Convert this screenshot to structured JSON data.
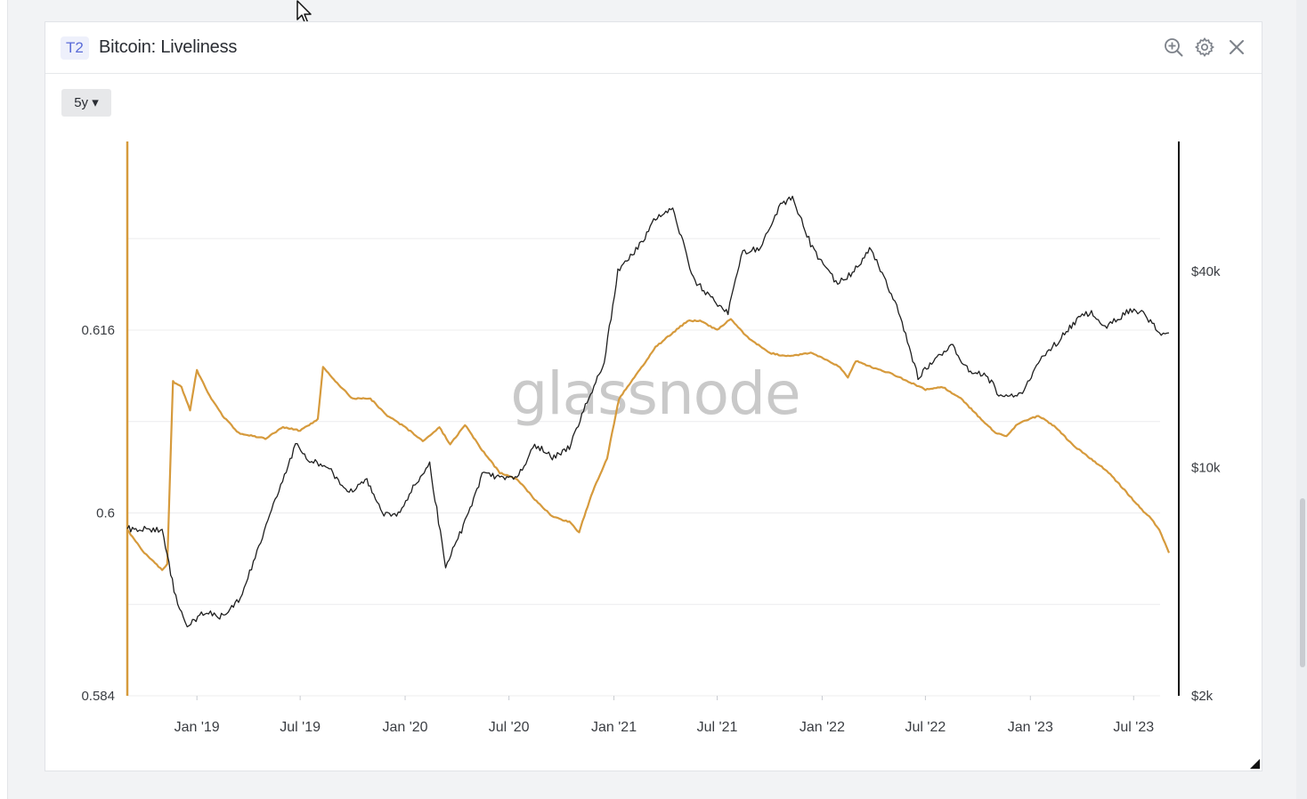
{
  "panel": {
    "badge": "T2",
    "title": "Bitcoin: Liveliness",
    "range_label": "5y ▾",
    "watermark": "glassnode"
  },
  "icons": {
    "zoom": "zoom-in-icon",
    "settings": "gear-icon",
    "close": "close-icon"
  },
  "colors": {
    "liveliness": "#d69a3c",
    "price": "#1f1f1f",
    "grid": "#ececee",
    "watermark": "#c9c9c9"
  },
  "chart_data": {
    "type": "line",
    "title": "Bitcoin: Liveliness",
    "x_range": [
      "2018-09-01",
      "2023-09-01"
    ],
    "x_ticks": [
      {
        "label": "Jan '19",
        "date": "2019-01-01"
      },
      {
        "label": "Jul '19",
        "date": "2019-07-01"
      },
      {
        "label": "Jan '20",
        "date": "2020-01-01"
      },
      {
        "label": "Jul '20",
        "date": "2020-07-01"
      },
      {
        "label": "Jan '21",
        "date": "2021-01-01"
      },
      {
        "label": "Jul '21",
        "date": "2021-07-01"
      },
      {
        "label": "Jan '22",
        "date": "2022-01-01"
      },
      {
        "label": "Jul '22",
        "date": "2022-07-01"
      },
      {
        "label": "Jan '23",
        "date": "2023-01-01"
      },
      {
        "label": "Jul '23",
        "date": "2023-07-01"
      }
    ],
    "y_left": {
      "ticks": [
        {
          "label": "0.584",
          "value": 0.584
        },
        {
          "label": "0.6",
          "value": 0.6
        },
        {
          "label": "0.616",
          "value": 0.616
        }
      ],
      "range": [
        0.584,
        0.6325
      ]
    },
    "y_right": {
      "scale": "log",
      "ticks": [
        {
          "label": "$2k",
          "value": 2000
        },
        {
          "label": "$10k",
          "value": 10000
        },
        {
          "label": "$40k",
          "value": 40000
        }
      ],
      "range": [
        2000,
        100000
      ]
    },
    "grid": true,
    "series": [
      {
        "axis": "left",
        "color": "#d69a3c",
        "points": [
          [
            "2018-09-01",
            0.5985
          ],
          [
            "2018-10-01",
            0.5965
          ],
          [
            "2018-11-01",
            0.595
          ],
          [
            "2018-11-10",
            0.5955
          ],
          [
            "2018-11-20",
            0.6115
          ],
          [
            "2018-12-05",
            0.611
          ],
          [
            "2018-12-20",
            0.609
          ],
          [
            "2019-01-01",
            0.6125
          ],
          [
            "2019-01-20",
            0.6105
          ],
          [
            "2019-02-15",
            0.6085
          ],
          [
            "2019-03-15",
            0.607
          ],
          [
            "2019-05-01",
            0.6065
          ],
          [
            "2019-06-01",
            0.6075
          ],
          [
            "2019-07-01",
            0.6072
          ],
          [
            "2019-08-01",
            0.6082
          ],
          [
            "2019-08-10",
            0.6128
          ],
          [
            "2019-09-01",
            0.6115
          ],
          [
            "2019-10-01",
            0.61
          ],
          [
            "2019-11-01",
            0.61
          ],
          [
            "2019-12-01",
            0.6085
          ],
          [
            "2020-01-01",
            0.6075
          ],
          [
            "2020-02-01",
            0.6063
          ],
          [
            "2020-03-01",
            0.6075
          ],
          [
            "2020-03-20",
            0.606
          ],
          [
            "2020-04-15",
            0.6077
          ],
          [
            "2020-05-15",
            0.6055
          ],
          [
            "2020-06-15",
            0.6035
          ],
          [
            "2020-07-15",
            0.603
          ],
          [
            "2020-08-15",
            0.6012
          ],
          [
            "2020-09-15",
            0.5997
          ],
          [
            "2020-10-15",
            0.5992
          ],
          [
            "2020-11-01",
            0.5983
          ],
          [
            "2020-11-10",
            0.5997
          ],
          [
            "2020-11-25",
            0.6019
          ],
          [
            "2020-12-20",
            0.6048
          ],
          [
            "2021-01-10",
            0.61
          ],
          [
            "2021-02-15",
            0.6125
          ],
          [
            "2021-03-15",
            0.6145
          ],
          [
            "2021-04-15",
            0.6158
          ],
          [
            "2021-05-10",
            0.6168
          ],
          [
            "2021-06-01",
            0.6168
          ],
          [
            "2021-07-01",
            0.616
          ],
          [
            "2021-07-25",
            0.617
          ],
          [
            "2021-08-20",
            0.6155
          ],
          [
            "2021-10-01",
            0.614
          ],
          [
            "2021-10-30",
            0.6137
          ],
          [
            "2021-12-15",
            0.614
          ],
          [
            "2022-02-01",
            0.6128
          ],
          [
            "2022-02-15",
            0.6118
          ],
          [
            "2022-03-01",
            0.6133
          ],
          [
            "2022-04-01",
            0.6127
          ],
          [
            "2022-05-01",
            0.6122
          ],
          [
            "2022-06-01",
            0.6115
          ],
          [
            "2022-07-01",
            0.6108
          ],
          [
            "2022-08-01",
            0.611
          ],
          [
            "2022-09-01",
            0.61
          ],
          [
            "2022-10-01",
            0.6085
          ],
          [
            "2022-11-01",
            0.607
          ],
          [
            "2022-11-20",
            0.6067
          ],
          [
            "2022-12-10",
            0.6078
          ],
          [
            "2023-01-15",
            0.6085
          ],
          [
            "2023-02-15",
            0.6075
          ],
          [
            "2023-03-15",
            0.606
          ],
          [
            "2023-04-15",
            0.6048
          ],
          [
            "2023-05-15",
            0.6037
          ],
          [
            "2023-06-15",
            0.602
          ],
          [
            "2023-07-15",
            0.6003
          ],
          [
            "2023-08-01",
            0.5995
          ],
          [
            "2023-08-15",
            0.5985
          ],
          [
            "2023-09-01",
            0.5965
          ]
        ]
      },
      {
        "axis": "right",
        "color": "#1f1f1f",
        "points": [
          [
            "2018-09-01",
            6500
          ],
          [
            "2018-10-01",
            6500
          ],
          [
            "2018-11-01",
            6400
          ],
          [
            "2018-11-25",
            4000
          ],
          [
            "2018-12-15",
            3300
          ],
          [
            "2019-01-15",
            3600
          ],
          [
            "2019-02-10",
            3500
          ],
          [
            "2019-03-15",
            3900
          ],
          [
            "2019-04-10",
            5100
          ],
          [
            "2019-05-15",
            7800
          ],
          [
            "2019-06-26",
            12000
          ],
          [
            "2019-07-15",
            10500
          ],
          [
            "2019-08-15",
            10200
          ],
          [
            "2019-09-25",
            8400
          ],
          [
            "2019-10-26",
            9200
          ],
          [
            "2019-11-25",
            7200
          ],
          [
            "2019-12-20",
            7200
          ],
          [
            "2020-01-15",
            8700
          ],
          [
            "2020-02-13",
            10200
          ],
          [
            "2020-03-12",
            5000
          ],
          [
            "2020-04-15",
            6800
          ],
          [
            "2020-05-15",
            9500
          ],
          [
            "2020-06-15",
            9400
          ],
          [
            "2020-07-15",
            9200
          ],
          [
            "2020-08-15",
            11800
          ],
          [
            "2020-09-15",
            10800
          ],
          [
            "2020-10-15",
            11500
          ],
          [
            "2020-11-15",
            16000
          ],
          [
            "2020-12-15",
            21000
          ],
          [
            "2021-01-08",
            40000
          ],
          [
            "2021-02-15",
            48000
          ],
          [
            "2021-03-15",
            58000
          ],
          [
            "2021-04-14",
            63000
          ],
          [
            "2021-05-20",
            38000
          ],
          [
            "2021-06-20",
            33000
          ],
          [
            "2021-07-20",
            30000
          ],
          [
            "2021-08-15",
            46000
          ],
          [
            "2021-09-15",
            47000
          ],
          [
            "2021-10-20",
            64000
          ],
          [
            "2021-11-10",
            67000
          ],
          [
            "2021-12-15",
            47000
          ],
          [
            "2022-01-25",
            37000
          ],
          [
            "2022-02-20",
            39000
          ],
          [
            "2022-03-28",
            47000
          ],
          [
            "2022-05-15",
            30000
          ],
          [
            "2022-06-18",
            19000
          ],
          [
            "2022-07-15",
            21000
          ],
          [
            "2022-08-15",
            23800
          ],
          [
            "2022-09-15",
            19800
          ],
          [
            "2022-10-15",
            19300
          ],
          [
            "2022-11-10",
            16500
          ],
          [
            "2022-12-15",
            16800
          ],
          [
            "2023-01-15",
            21000
          ],
          [
            "2023-02-15",
            24000
          ],
          [
            "2023-03-20",
            28000
          ],
          [
            "2023-04-15",
            30000
          ],
          [
            "2023-05-15",
            27000
          ],
          [
            "2023-06-25",
            30500
          ],
          [
            "2023-07-15",
            30000
          ],
          [
            "2023-08-15",
            26000
          ],
          [
            "2023-09-01",
            25900
          ]
        ]
      }
    ]
  }
}
